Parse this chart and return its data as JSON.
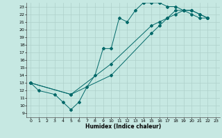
{
  "xlabel": "Humidex (Indice chaleur)",
  "xlim": [
    -0.5,
    23.5
  ],
  "ylim": [
    8.5,
    23.5
  ],
  "yticks": [
    9,
    10,
    11,
    12,
    13,
    14,
    15,
    16,
    17,
    18,
    19,
    20,
    21,
    22,
    23
  ],
  "xticks": [
    0,
    1,
    2,
    3,
    4,
    5,
    6,
    7,
    8,
    9,
    10,
    11,
    12,
    13,
    14,
    15,
    16,
    17,
    18,
    19,
    20,
    21,
    22,
    23
  ],
  "bg_color": "#c6e8e2",
  "grid_color": "#aed0ca",
  "line_color": "#006868",
  "line1_x": [
    0,
    1,
    3,
    4,
    5,
    6,
    7,
    8,
    9,
    10,
    11,
    12,
    13,
    14,
    15,
    16,
    17,
    18,
    19,
    20,
    21,
    22
  ],
  "line1_y": [
    13,
    12,
    11.5,
    10.5,
    9.5,
    10.5,
    12.5,
    14.0,
    17.5,
    17.5,
    21.5,
    21.0,
    22.5,
    23.5,
    23.5,
    23.5,
    23.0,
    23.0,
    22.5,
    22.0,
    21.5,
    21.5
  ],
  "line2_x": [
    0,
    5,
    10,
    15,
    16,
    17,
    18,
    19,
    20,
    21,
    22
  ],
  "line2_y": [
    13,
    11.5,
    15.5,
    20.5,
    21.0,
    21.5,
    22.0,
    22.5,
    22.5,
    22.0,
    21.5
  ],
  "line3_x": [
    0,
    5,
    10,
    15,
    16,
    17,
    18,
    19,
    20,
    21,
    22
  ],
  "line3_y": [
    13,
    11.5,
    14.0,
    19.5,
    20.5,
    21.5,
    22.5,
    22.5,
    22.5,
    22.0,
    21.5
  ]
}
